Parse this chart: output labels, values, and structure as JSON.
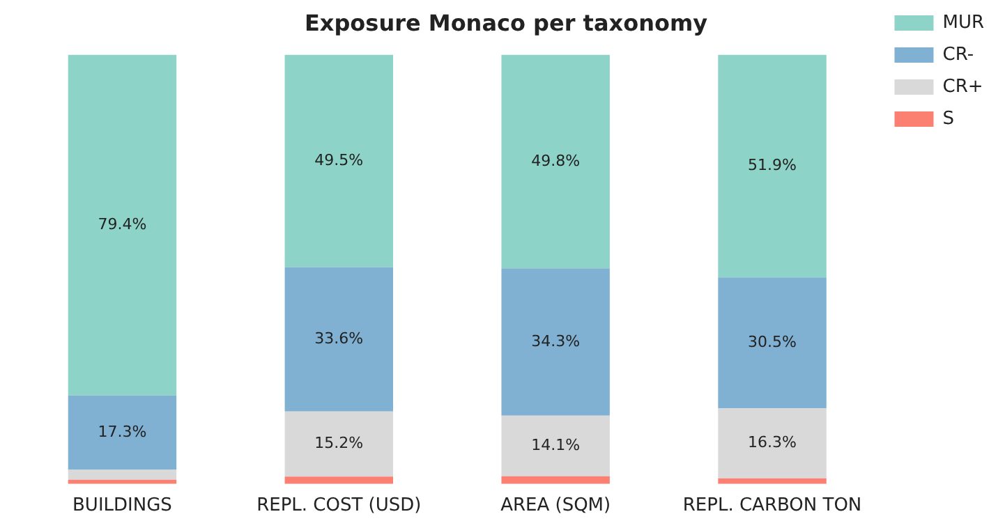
{
  "chart_data": {
    "type": "bar",
    "title": "Exposure Monaco per taxonomy",
    "categories": [
      "BUILDINGS",
      "REPL. COST (USD)",
      "AREA (SQM)",
      "REPL. CARBON TON"
    ],
    "stacked": true,
    "ylim": [
      0,
      100
    ],
    "tick_labels": "x",
    "grid": false,
    "legend": "top right",
    "series": [
      {
        "name": "S",
        "color": "#fb8072",
        "values": [
          1.0,
          1.7,
          1.8,
          1.3
        ],
        "value_labels": [
          null,
          null,
          null,
          null
        ]
      },
      {
        "name": "CR+",
        "color": "#d9d9d9",
        "values": [
          2.3,
          15.2,
          14.1,
          16.3
        ],
        "value_labels": [
          null,
          "15.2%",
          "14.1%",
          "16.3%"
        ]
      },
      {
        "name": "CR-",
        "color": "#80b1d3",
        "values": [
          17.3,
          33.6,
          34.3,
          30.5
        ],
        "value_labels": [
          "17.3%",
          "33.6%",
          "34.3%",
          "30.5%"
        ]
      },
      {
        "name": "MUR",
        "color": "#8dd3c7",
        "values": [
          79.4,
          49.5,
          49.8,
          51.9
        ],
        "value_labels": [
          "79.4%",
          "49.5%",
          "49.8%",
          "51.9%"
        ]
      }
    ]
  }
}
